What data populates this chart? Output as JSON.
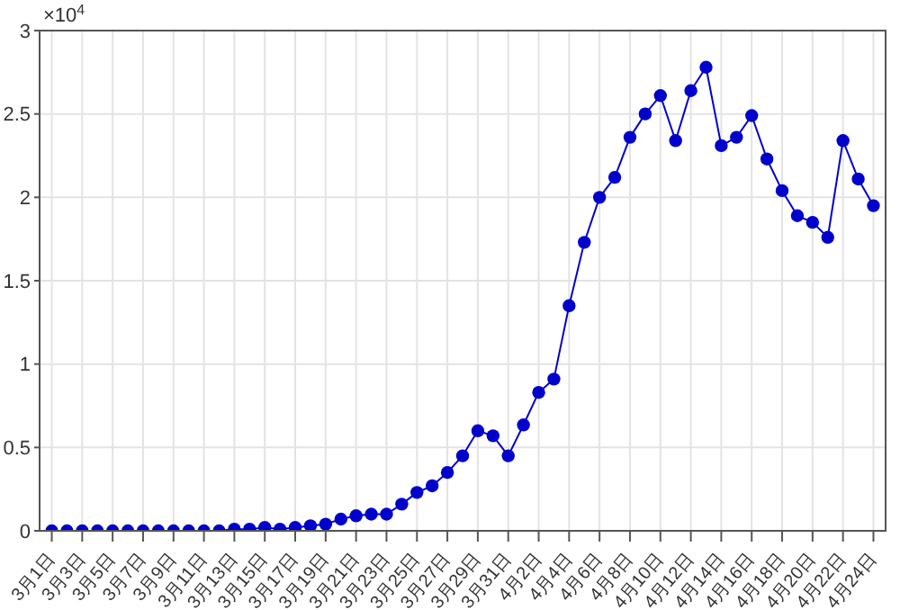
{
  "chart_data": {
    "type": "line",
    "categories": [
      "3月1日",
      null,
      "3月3日",
      null,
      "3月5日",
      null,
      "3月7日",
      null,
      "3月9日",
      null,
      "3月11日",
      null,
      "3月13日",
      null,
      "3月15日",
      null,
      "3月17日",
      null,
      "3月19日",
      null,
      "3月21日",
      null,
      "3月23日",
      null,
      "3月25日",
      null,
      "3月27日",
      null,
      "3月29日",
      null,
      "3月31日",
      null,
      "4月2日",
      null,
      "4月4日",
      null,
      "4月6日",
      null,
      "4月8日",
      null,
      "4月10日",
      null,
      "4月12日",
      null,
      "4月14日",
      null,
      "4月16日",
      null,
      "4月18日",
      null,
      "4月20日",
      null,
      "4月22日",
      null,
      "4月24日"
    ],
    "series": [
      {
        "color": "#0000cc",
        "values": [
          0,
          0,
          0,
          0,
          0,
          0,
          0,
          0,
          0,
          0,
          0,
          0,
          0.01,
          0.01,
          0.02,
          0.01,
          0.02,
          0.03,
          0.04,
          0.07,
          0.09,
          0.1,
          0.1,
          0.16,
          0.23,
          0.27,
          0.35,
          0.45,
          0.6,
          0.57,
          0.45,
          0.635,
          0.83,
          0.91,
          1.35,
          1.73,
          2.0,
          2.12,
          2.36,
          2.5,
          2.61,
          2.34,
          2.64,
          2.78,
          2.31,
          2.36,
          2.49,
          2.23,
          2.04,
          1.89,
          1.85,
          1.76,
          2.34,
          2.11,
          1.95
        ]
      }
    ],
    "ylim": [
      0,
      3
    ],
    "yticks": [
      0,
      0.5,
      1,
      1.5,
      2,
      2.5,
      3
    ],
    "grid": true,
    "marker": "circle",
    "line_style": "solid",
    "annotations": [
      "×10$^{4}$"
    ]
  }
}
